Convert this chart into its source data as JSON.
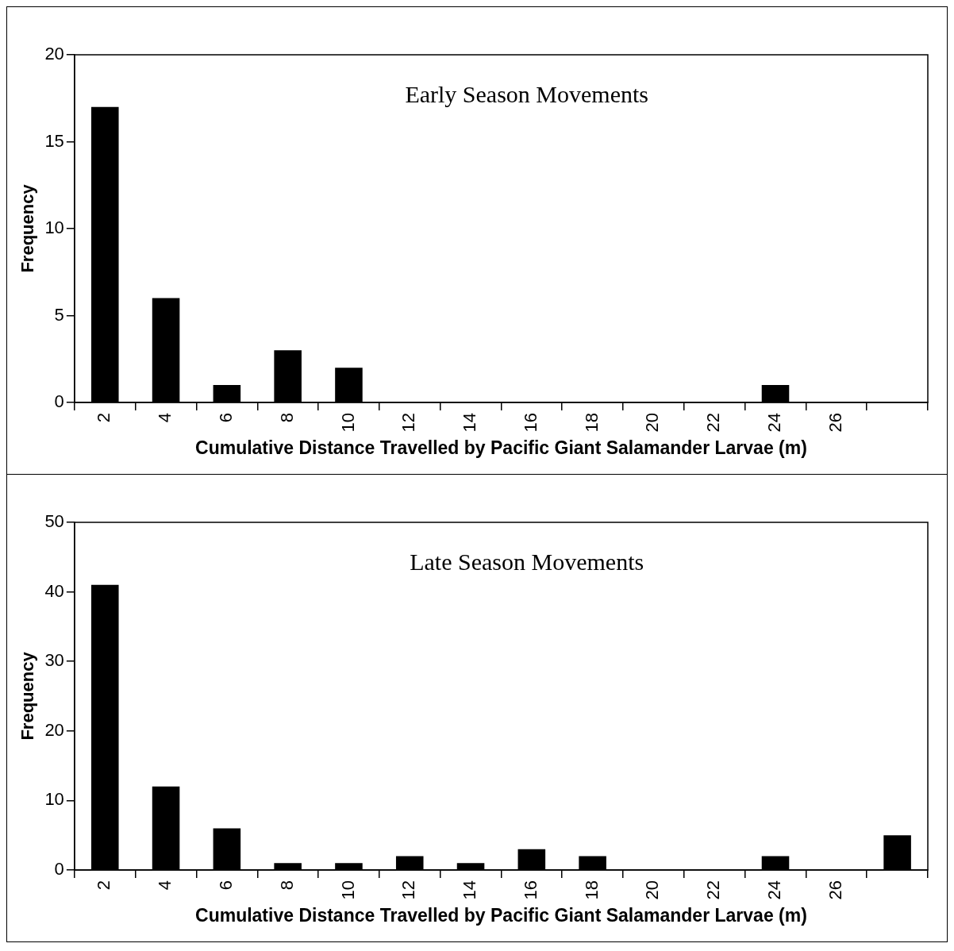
{
  "chart_data": [
    {
      "type": "bar",
      "title": "Early Season Movements",
      "ylabel": "Frequency",
      "xlabel": "Cumulative Distance Travelled by Pacific Giant Salamander Larvae (m)",
      "categories": [
        "2",
        "4",
        "6",
        "8",
        "10",
        "12",
        "14",
        "16",
        "18",
        "20",
        "22",
        "24",
        "26",
        null
      ],
      "values": [
        17,
        6,
        1,
        3,
        2,
        0,
        0,
        0,
        0,
        0,
        0,
        1,
        0,
        0
      ],
      "color": "#000000",
      "ylim": [
        0,
        20
      ],
      "yticks": [
        0,
        5,
        10,
        15,
        20
      ],
      "grid": false,
      "legend": false
    },
    {
      "type": "bar",
      "title": "Late Season Movements",
      "ylabel": "Frequency",
      "xlabel": "Cumulative Distance Travelled by Pacific Giant Salamander Larvae (m)",
      "categories": [
        "2",
        "4",
        "6",
        "8",
        "10",
        "12",
        "14",
        "16",
        "18",
        "20",
        "22",
        "24",
        "26",
        null
      ],
      "values": [
        41,
        12,
        6,
        1,
        1,
        2,
        1,
        3,
        2,
        0,
        0,
        2,
        0,
        5
      ],
      "color": "#000000",
      "ylim": [
        0,
        50
      ],
      "yticks": [
        0,
        10,
        20,
        30,
        40,
        50
      ],
      "grid": false,
      "legend": false
    }
  ]
}
